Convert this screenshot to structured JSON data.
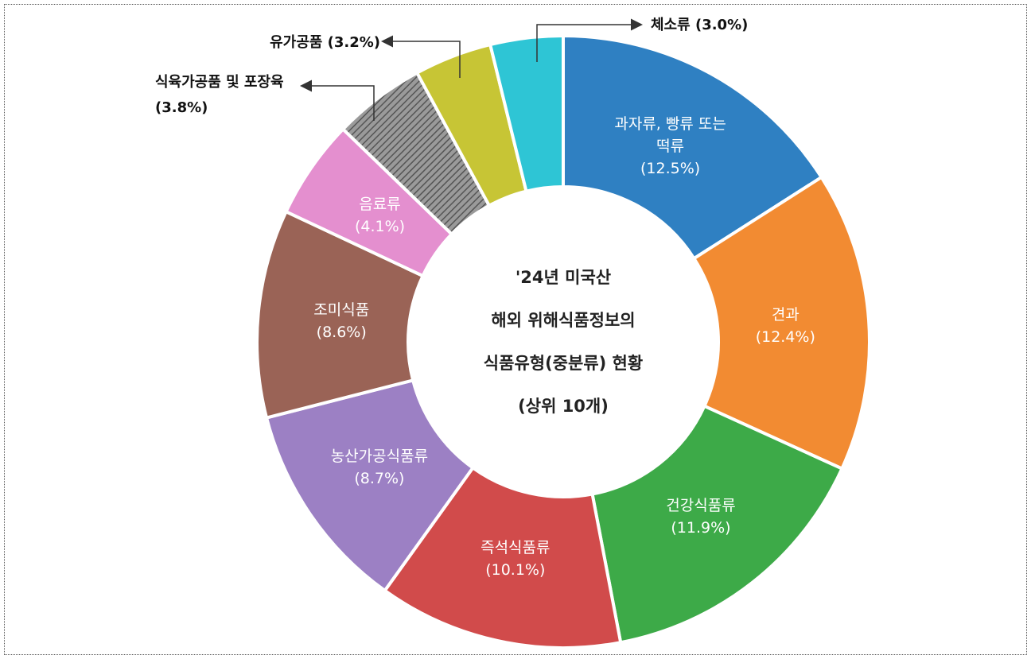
{
  "chart_data": {
    "type": "donut",
    "title": "'24년 미국산\n해외 위해식품정보의\n식품유형(중분류) 현황\n(상위 10개)",
    "categories": [
      "과자류, 빵류 또는 떡류",
      "견과",
      "건강식품류",
      "즉석식품류",
      "농산가공식품류",
      "조미식품",
      "음료류",
      "식육가공품 및 포장육",
      "유가공품",
      "체소류"
    ],
    "values": [
      12.5,
      12.4,
      11.9,
      10.1,
      8.7,
      8.6,
      4.1,
      3.8,
      3.2,
      3.0
    ],
    "value_labels": [
      "(12.5%)",
      "(12.4%)",
      "(11.9%)",
      "(10.1%)",
      "(8.7%)",
      "(8.6%)",
      "(4.1%)",
      "(3.8%)",
      "(3.2%)",
      "(3.0%)"
    ],
    "colors": [
      "#2f80c2",
      "#f28b32",
      "#3daa48",
      "#d14b4b",
      "#9c80c4",
      "#9a6356",
      "#e48fcf",
      "#8a8a8a",
      "#c7c535",
      "#2ec5d5"
    ]
  }
}
